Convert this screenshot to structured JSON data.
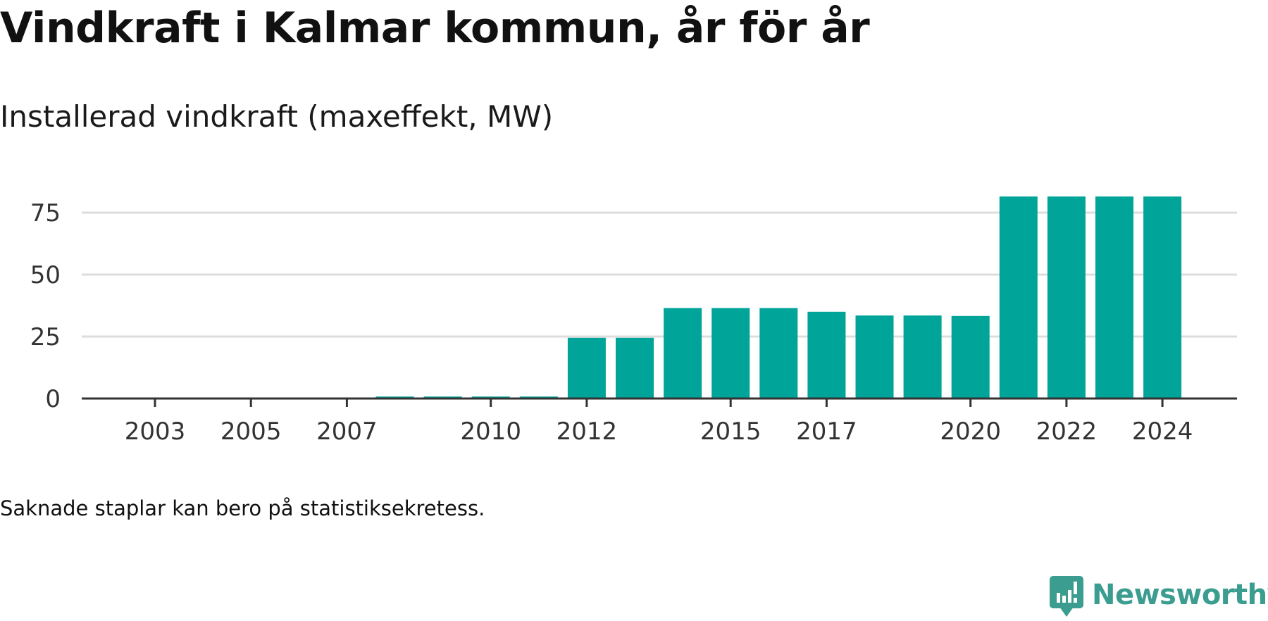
{
  "header": {
    "title": "Vindkraft i Kalmar kommun, år för år",
    "subtitle": "Installerad vindkraft (maxeffekt, MW)"
  },
  "footer": {
    "note": "Saknade staplar kan bero på statistiksekretess.",
    "brand_name": "Newsworthy"
  },
  "colors": {
    "bar": "#00a499",
    "brand": "#3b9d8f",
    "grid": "#dddddd",
    "axis": "#333333",
    "text": "#111111"
  },
  "icons": {
    "brand": "newsworthy-logo-icon"
  },
  "chart_data": {
    "type": "bar",
    "title": "Vindkraft i Kalmar kommun, år för år",
    "subtitle": "Installerad vindkraft (maxeffekt, MW)",
    "xlabel": "",
    "ylabel": "",
    "categories": [
      "2003",
      "2004",
      "2005",
      "2006",
      "2007",
      "2008",
      "2009",
      "2010",
      "2011",
      "2012",
      "2013",
      "2014",
      "2015",
      "2016",
      "2017",
      "2018",
      "2019",
      "2020",
      "2021",
      "2022",
      "2023",
      "2024"
    ],
    "values": [
      0,
      0,
      0.4,
      0.4,
      0.4,
      0.8,
      0.8,
      0.8,
      0.8,
      24.5,
      24.5,
      36.5,
      36.5,
      36.5,
      35,
      33.5,
      33.5,
      33.3,
      81.5,
      81.5,
      81.5,
      81.5
    ],
    "x_tick_labels": [
      "2003",
      "2005",
      "2007",
      "2010",
      "2012",
      "2015",
      "2017",
      "2020",
      "2022",
      "2024"
    ],
    "y_ticks": [
      0,
      25,
      50,
      75
    ],
    "ylim": [
      0,
      84
    ],
    "grid": true,
    "legend": "none"
  }
}
